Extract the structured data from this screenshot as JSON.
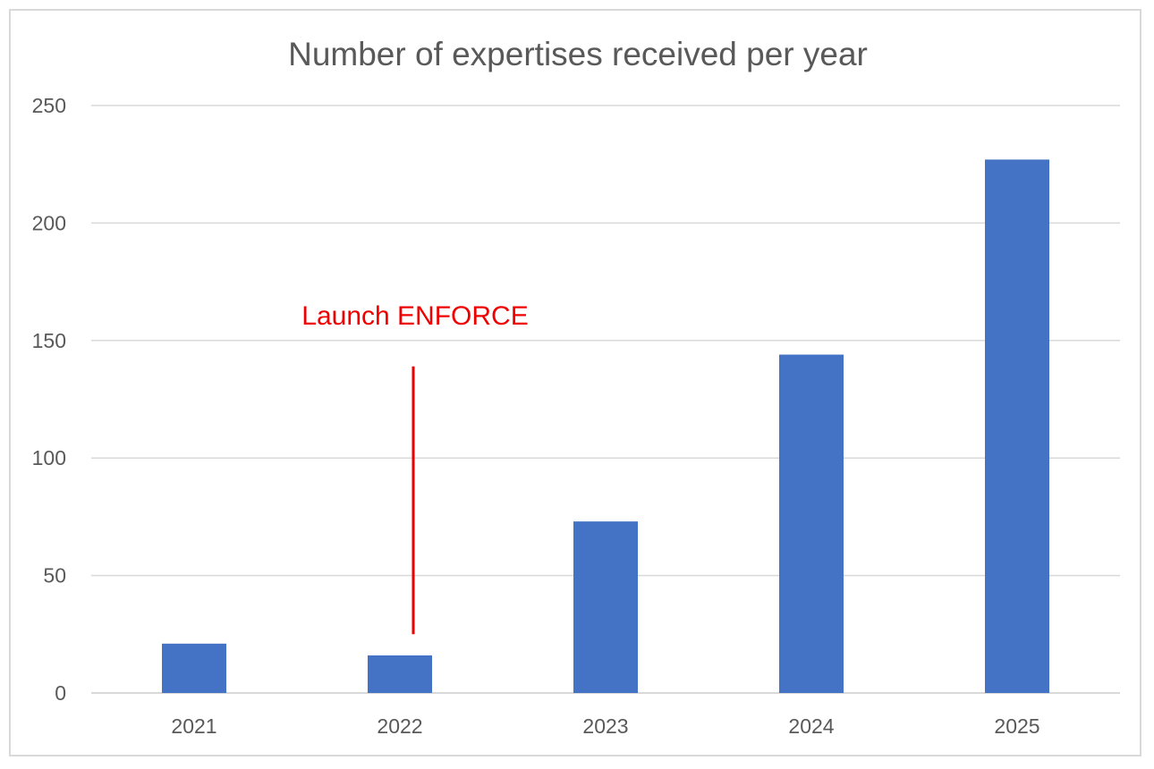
{
  "chart_data": {
    "type": "bar",
    "title": "Number of expertises received per year",
    "xlabel": "",
    "ylabel": "",
    "categories": [
      "2021",
      "2022",
      "2023",
      "2024",
      "2025"
    ],
    "values": [
      21,
      16,
      73,
      144,
      227
    ],
    "ylim": [
      0,
      250
    ],
    "yticks": [
      0,
      50,
      100,
      150,
      200,
      250
    ],
    "grid": true,
    "legend": "none",
    "bar_color": "#4472c4",
    "grid_color": "#d9d9d9",
    "annotations": [
      {
        "text": "Launch ENFORCE",
        "color": "#ee0000",
        "category": "2022",
        "y_from": 25,
        "y_to": 139
      }
    ]
  }
}
